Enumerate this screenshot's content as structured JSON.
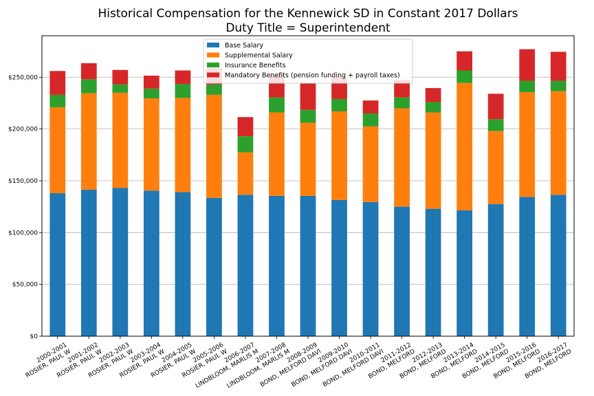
{
  "chart_data": {
    "type": "bar",
    "stacked": true,
    "title": "Historical Compensation for the Kennewick SD in Constant 2017 Dollars",
    "subtitle": "Duty Title = Superintendent",
    "xlabel": "",
    "ylabel": "",
    "ylim": [
      0,
      290000
    ],
    "yticks": [
      0,
      50000,
      100000,
      150000,
      200000,
      250000
    ],
    "ytick_labels": [
      "$0",
      "$50,000",
      "$100,000",
      "$150,000",
      "$200,000",
      "$250,000"
    ],
    "grid": "horizontal",
    "legend_position": "top-center",
    "categories": [
      [
        "2000-2001",
        "ROSIER, PAUL W"
      ],
      [
        "2001-2002",
        "ROSIER, PAUL W"
      ],
      [
        "2002-2003",
        "ROSIER, PAUL W"
      ],
      [
        "2003-2004",
        "ROSIER, PAUL W"
      ],
      [
        "2004-2005",
        "ROSIER, PAUL W"
      ],
      [
        "2005-2006",
        "ROSIER, PAUL W"
      ],
      [
        "2006-2007",
        "LINDBLOOM, MARLIS M"
      ],
      [
        "2007-2008",
        "LINDBLOOM, MARLIS M"
      ],
      [
        "2008-2009",
        "BOND, MELFORD DAVI"
      ],
      [
        "2009-2010",
        "BOND, MELFORD DAVI"
      ],
      [
        "2010-2011",
        "BOND, MELFORD DAVI"
      ],
      [
        "2011-2012",
        "BOND, MELFORD"
      ],
      [
        "2012-2013",
        "BOND, MELFORD"
      ],
      [
        "2013-2014",
        "BOND, MELFORD"
      ],
      [
        "2014-2015",
        "BOND, MELFORD"
      ],
      [
        "2015-2016",
        "BOND, MELFORD"
      ],
      [
        "2016-2017",
        "BOND, MELFORD"
      ]
    ],
    "series": [
      {
        "name": "Base Salary",
        "color": "#1f77b4",
        "values": [
          138000,
          141500,
          143000,
          140500,
          139000,
          133500,
          136500,
          135500,
          135500,
          131500,
          129500,
          125000,
          123000,
          121500,
          127500,
          134500,
          136500
        ]
      },
      {
        "name": "Supplemental Salary",
        "color": "#ff7f0e",
        "values": [
          83000,
          93000,
          92000,
          89000,
          91000,
          99500,
          41000,
          80500,
          70500,
          85500,
          73000,
          95000,
          93000,
          123000,
          70500,
          101000,
          100000
        ]
      },
      {
        "name": "Insurance Benefits",
        "color": "#2ca02c",
        "values": [
          12000,
          13500,
          8000,
          9500,
          13500,
          10000,
          15500,
          14500,
          12500,
          12000,
          12500,
          10500,
          10000,
          12000,
          11500,
          11000,
          10000
        ]
      },
      {
        "name": "Mandatory Benefits (pension funding + payroll taxes)",
        "color": "#d62728",
        "values": [
          23000,
          15500,
          14000,
          12500,
          13000,
          16000,
          18500,
          21500,
          26000,
          21000,
          12500,
          17000,
          13500,
          18500,
          24500,
          30500,
          28000
        ]
      }
    ]
  }
}
